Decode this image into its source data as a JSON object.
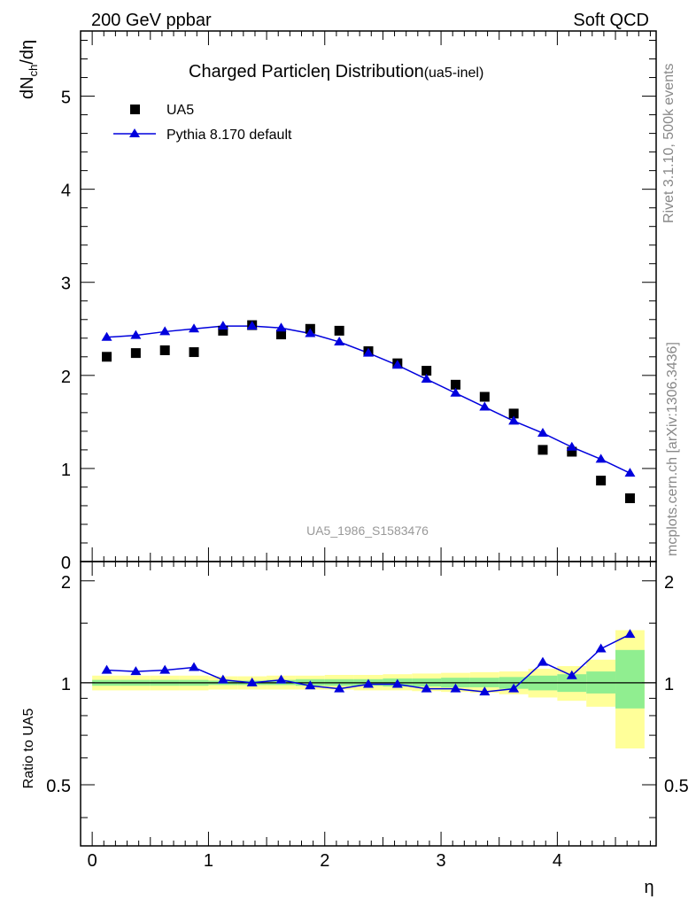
{
  "header": {
    "left": "200 GeV ppbar",
    "right": "Soft QCD"
  },
  "side_labels": {
    "rivet": "Rivet 3.1.10,  500k events",
    "mcplots": "mcplots.cern.ch [arXiv:1306.3436]"
  },
  "chart_data": [
    {
      "panel": "main",
      "type": "scatter",
      "title": "Charged Particle",
      "title_symbol": "η",
      "title_rest": " Distribution",
      "title_suffix": "(ua5-inel)",
      "ylabel": "dN",
      "ylabel_sub": "ch",
      "ylabel_rest": "/dη",
      "analysis_tag": "UA5_1986_S1583476",
      "xlim": [
        -0.1,
        4.85
      ],
      "ylim": [
        0,
        5.7
      ],
      "y_ticks": [
        0,
        1,
        2,
        3,
        4,
        5
      ],
      "y_tick_labels": [
        "0",
        "1",
        "2",
        "3",
        "4",
        "5"
      ],
      "legend": [
        {
          "label": "UA5",
          "marker": "square",
          "color": "#000000"
        },
        {
          "label": "Pythia 8.170 default",
          "marker": "triangle",
          "color": "#0000dd"
        }
      ],
      "x": [
        0.125,
        0.375,
        0.625,
        0.875,
        1.125,
        1.375,
        1.625,
        1.875,
        2.125,
        2.375,
        2.625,
        2.875,
        3.125,
        3.375,
        3.625,
        3.875,
        4.125,
        4.375,
        4.625
      ],
      "series": [
        {
          "name": "UA5",
          "values": [
            2.2,
            2.24,
            2.27,
            2.25,
            2.48,
            2.54,
            2.44,
            2.5,
            2.48,
            2.26,
            2.13,
            2.05,
            1.9,
            1.77,
            1.59,
            1.2,
            1.18,
            0.87,
            0.68
          ]
        },
        {
          "name": "Pythia 8.170 default",
          "values": [
            2.41,
            2.43,
            2.47,
            2.5,
            2.53,
            2.53,
            2.51,
            2.45,
            2.36,
            2.24,
            2.11,
            1.96,
            1.81,
            1.66,
            1.51,
            1.38,
            1.23,
            1.1,
            0.95
          ]
        }
      ]
    },
    {
      "panel": "ratio",
      "type": "line",
      "ylabel": "Ratio to UA5",
      "xlabel": "η",
      "xlim": [
        -0.1,
        4.85
      ],
      "ylim": [
        0.33,
        2.28
      ],
      "y_scale": "log",
      "x_ticks": [
        0,
        1,
        2,
        3,
        4
      ],
      "x_tick_labels": [
        "0",
        "1",
        "2",
        "3",
        "4"
      ],
      "y_ticks": [
        0.5,
        1,
        2
      ],
      "y_tick_labels": [
        "0.5",
        "1",
        "2"
      ],
      "bin_edges": [
        0,
        0.25,
        0.5,
        0.75,
        1.0,
        1.25,
        1.5,
        1.75,
        2.0,
        2.25,
        2.5,
        2.75,
        3.0,
        3.25,
        3.5,
        3.75,
        4.0,
        4.25,
        4.5,
        4.75
      ],
      "stat_band": [
        [
          0.98,
          1.02
        ],
        [
          0.98,
          1.02
        ],
        [
          0.98,
          1.02
        ],
        [
          0.98,
          1.02
        ],
        [
          0.985,
          1.015
        ],
        [
          0.985,
          1.015
        ],
        [
          0.985,
          1.02
        ],
        [
          0.98,
          1.025
        ],
        [
          0.98,
          1.025
        ],
        [
          0.98,
          1.025
        ],
        [
          0.975,
          1.03
        ],
        [
          0.975,
          1.03
        ],
        [
          0.97,
          1.035
        ],
        [
          0.97,
          1.035
        ],
        [
          0.96,
          1.04
        ],
        [
          0.95,
          1.05
        ],
        [
          0.94,
          1.06
        ],
        [
          0.93,
          1.08
        ],
        [
          0.84,
          1.25
        ]
      ],
      "syst_band": [
        [
          0.95,
          1.05
        ],
        [
          0.95,
          1.05
        ],
        [
          0.95,
          1.05
        ],
        [
          0.95,
          1.05
        ],
        [
          0.955,
          1.045
        ],
        [
          0.955,
          1.045
        ],
        [
          0.955,
          1.05
        ],
        [
          0.955,
          1.05
        ],
        [
          0.955,
          1.055
        ],
        [
          0.95,
          1.055
        ],
        [
          0.95,
          1.06
        ],
        [
          0.945,
          1.065
        ],
        [
          0.94,
          1.07
        ],
        [
          0.935,
          1.075
        ],
        [
          0.925,
          1.08
        ],
        [
          0.905,
          1.1
        ],
        [
          0.885,
          1.12
        ],
        [
          0.85,
          1.17
        ],
        [
          0.64,
          1.43
        ]
      ],
      "x": [
        0.125,
        0.375,
        0.625,
        0.875,
        1.125,
        1.375,
        1.625,
        1.875,
        2.125,
        2.375,
        2.625,
        2.875,
        3.125,
        3.375,
        3.625,
        3.875,
        4.125,
        4.375,
        4.625
      ],
      "series": [
        {
          "name": "Pythia 8.170 default / UA5",
          "values": [
            1.09,
            1.08,
            1.09,
            1.11,
            1.02,
            1.0,
            1.02,
            0.98,
            0.96,
            0.99,
            0.99,
            0.96,
            0.96,
            0.94,
            0.96,
            1.15,
            1.05,
            1.26,
            1.39
          ]
        }
      ],
      "colors": {
        "stat": "#90ee90",
        "syst": "#ffff99",
        "line": "#0000dd",
        "ref": "#000000"
      }
    }
  ]
}
